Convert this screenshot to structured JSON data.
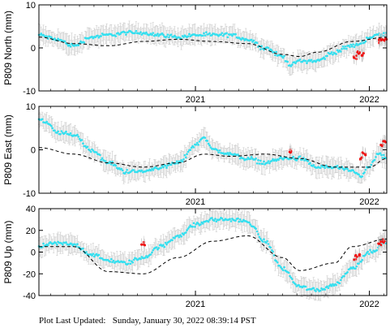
{
  "footer": {
    "label": "Plot Last Updated:",
    "timestamp": "Sunday, January 30, 2022 08:39:14 PST"
  },
  "colors": {
    "final_points": "#33e0f0",
    "rapid_points": "#ee1111",
    "error_bars": "#c8c8c8",
    "model_curve": "#000000"
  },
  "time_axis": {
    "range": [
      2020.1,
      2022.1
    ],
    "year_ticks": [
      2021,
      2022
    ],
    "labels": [
      "2021",
      "2022"
    ]
  },
  "chart_data": [
    {
      "type": "scatter",
      "ylabel": "P809 North (mm)",
      "ylim": [
        -10,
        10
      ],
      "yticks": [
        -10,
        0,
        10
      ],
      "series": [
        {
          "role": "final",
          "x": [
            2020.1,
            2020.2,
            2020.3,
            2020.4,
            2020.5,
            2020.6,
            2020.7,
            2020.8,
            2020.9,
            2021.0,
            2021.1,
            2021.2,
            2021.3,
            2021.4,
            2021.5,
            2021.55,
            2021.6,
            2021.65,
            2021.7,
            2021.8,
            2021.9,
            2022.05,
            2022.1
          ],
          "y": [
            3,
            2,
            0.5,
            2.5,
            3,
            3.5,
            3.5,
            3,
            2.5,
            3,
            3,
            3,
            2,
            0,
            -2,
            -4,
            -3,
            -3,
            -3,
            -1,
            0.5,
            3,
            3
          ]
        },
        {
          "role": "rapid",
          "x": [
            2021.92,
            2021.94,
            2021.96,
            2022.05,
            2022.07,
            2022.09
          ],
          "y": [
            -2,
            -1,
            -1.5,
            1.5,
            2,
            2
          ]
        },
        {
          "role": "model",
          "x": [
            2020.1,
            2020.3,
            2020.5,
            2020.7,
            2020.9,
            2021.1,
            2021.3,
            2021.5,
            2021.6,
            2021.7,
            2021.9,
            2022.1
          ],
          "y": [
            2.5,
            1,
            0.5,
            1.5,
            2,
            1.5,
            1,
            -1.5,
            -2,
            -1,
            1.5,
            2.5
          ]
        }
      ]
    },
    {
      "type": "scatter",
      "ylabel": "P809 East (mm)",
      "ylim": [
        -10,
        10
      ],
      "yticks": [
        -10,
        0,
        10
      ],
      "series": [
        {
          "role": "final",
          "x": [
            2020.1,
            2020.15,
            2020.2,
            2020.3,
            2020.4,
            2020.5,
            2020.6,
            2020.7,
            2020.8,
            2020.9,
            2021.0,
            2021.05,
            2021.1,
            2021.2,
            2021.3,
            2021.4,
            2021.5,
            2021.6,
            2021.7,
            2021.8,
            2021.9,
            2021.95,
            2022.0,
            2022.05,
            2022.1
          ],
          "y": [
            7,
            6,
            4,
            3.5,
            0,
            -3,
            -5,
            -5,
            -4,
            -3,
            1,
            3,
            0,
            -1,
            -2,
            -3,
            -2,
            -2,
            -4,
            -4,
            -5,
            -6,
            -4,
            -1,
            -2
          ]
        },
        {
          "role": "rapid",
          "x": [
            2021.55,
            2021.95,
            2021.97,
            2022.07,
            2022.09
          ],
          "y": [
            -0.5,
            -2,
            -1,
            1,
            2
          ]
        },
        {
          "role": "model",
          "x": [
            2020.1,
            2020.3,
            2020.5,
            2020.7,
            2020.9,
            2021.05,
            2021.2,
            2021.4,
            2021.6,
            2021.8,
            2022.0,
            2022.1
          ],
          "y": [
            0.5,
            -1,
            -3,
            -4,
            -3,
            -1,
            -1.5,
            -1,
            -2,
            -4,
            -4,
            -2
          ]
        }
      ]
    },
    {
      "type": "scatter",
      "ylabel": "P809 Up (mm)",
      "ylim": [
        -40,
        40
      ],
      "yticks": [
        -40,
        -20,
        0,
        20,
        40
      ],
      "series": [
        {
          "role": "final",
          "x": [
            2020.1,
            2020.2,
            2020.3,
            2020.4,
            2020.5,
            2020.6,
            2020.7,
            2020.8,
            2020.9,
            2021.0,
            2021.1,
            2021.2,
            2021.3,
            2021.4,
            2021.5,
            2021.6,
            2021.7,
            2021.8,
            2021.9,
            2022.0,
            2022.1
          ],
          "y": [
            5,
            8,
            7,
            -2,
            -8,
            -10,
            -5,
            5,
            15,
            25,
            30,
            30,
            28,
            10,
            -15,
            -32,
            -35,
            -30,
            -15,
            0,
            10
          ]
        },
        {
          "role": "rapid",
          "x": [
            2020.7,
            2021.92,
            2021.94,
            2022.06,
            2022.08
          ],
          "y": [
            7,
            -5,
            -3,
            8,
            10
          ]
        },
        {
          "role": "model",
          "x": [
            2020.1,
            2020.3,
            2020.5,
            2020.7,
            2020.9,
            2021.1,
            2021.3,
            2021.5,
            2021.6,
            2021.8,
            2021.9,
            2022.1
          ],
          "y": [
            5,
            5,
            -18,
            -20,
            -5,
            10,
            15,
            -5,
            -17,
            -10,
            5,
            12
          ]
        }
      ]
    }
  ]
}
